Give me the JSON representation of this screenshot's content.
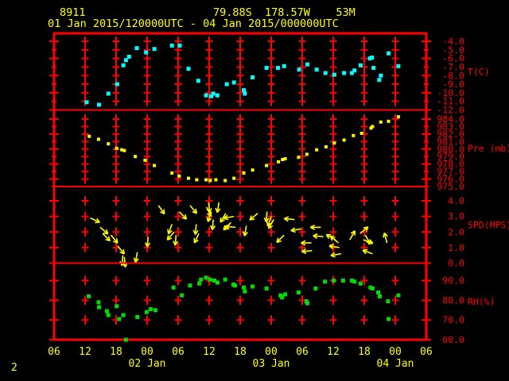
{
  "header": {
    "station_id": "8911",
    "coords": "79.88S  178.57W    53M",
    "period": "01 Jan 2015/120000UTC - 04 Jan 2015/000000UTC",
    "page_number": "2"
  },
  "colors": {
    "background": "#000000",
    "axis": "#ff0000",
    "header_text": "#ffff00",
    "time_labels": "#ffff00",
    "temperature": "#00ffff",
    "pressure": "#ffff00",
    "wind": "#ffff00",
    "humidity": "#00dd00"
  },
  "time_axis": {
    "start_hour": 6,
    "end_hour": 78,
    "tick_interval_hours": 6,
    "hour_labels": [
      "06",
      "12",
      "18",
      "00",
      "06",
      "12",
      "18",
      "00",
      "06",
      "12",
      "18",
      "00",
      "06"
    ],
    "day_labels": [
      {
        "label": "02 Jan",
        "tick_index": 3
      },
      {
        "label": "03 Jan",
        "tick_index": 7
      },
      {
        "label": "04 Jan",
        "tick_index": 11
      }
    ]
  },
  "chart_data": [
    {
      "type": "scatter",
      "panel": "temperature",
      "ylabel": "T(C)",
      "ytick_labels": [
        "-4.0",
        "-5.0",
        "-6.0",
        "-7.0",
        "-8.0",
        "-9.0",
        "-10.0",
        "-11.0",
        "-12.0"
      ],
      "ylim": [
        -12.0,
        -4.0
      ],
      "points": [
        [
          12.3,
          -11.1
        ],
        [
          14.7,
          -11.4
        ],
        [
          16.5,
          -10.1
        ],
        [
          18.2,
          -9.0
        ],
        [
          19.4,
          -6.8
        ],
        [
          19.9,
          -6.2
        ],
        [
          20.5,
          -5.8
        ],
        [
          22.0,
          -4.8
        ],
        [
          23.8,
          -5.3
        ],
        [
          25.4,
          -4.9
        ],
        [
          28.8,
          -4.5
        ],
        [
          30.3,
          -4.5
        ],
        [
          32.0,
          -7.2
        ],
        [
          33.9,
          -8.6
        ],
        [
          35.4,
          -10.3
        ],
        [
          36.4,
          -10.4
        ],
        [
          36.8,
          -10.1
        ],
        [
          37.6,
          -10.3
        ],
        [
          39.4,
          -9.0
        ],
        [
          40.8,
          -8.8
        ],
        [
          42.7,
          -9.7
        ],
        [
          42.9,
          -10.1
        ],
        [
          44.4,
          -8.2
        ],
        [
          47.1,
          -7.1
        ],
        [
          49.3,
          -7.1
        ],
        [
          50.5,
          -6.9
        ],
        [
          53.4,
          -7.3
        ],
        [
          55.0,
          -6.7
        ],
        [
          56.8,
          -7.3
        ],
        [
          58.5,
          -7.7
        ],
        [
          60.2,
          -7.9
        ],
        [
          62.1,
          -7.7
        ],
        [
          63.6,
          -7.7
        ],
        [
          64.1,
          -7.4
        ],
        [
          65.3,
          -6.8
        ],
        [
          67.1,
          -6.0
        ],
        [
          67.5,
          -5.9
        ],
        [
          67.8,
          -7.1
        ],
        [
          68.9,
          -8.5
        ],
        [
          69.2,
          -8.0
        ],
        [
          70.7,
          -5.4
        ],
        [
          72.6,
          -6.9
        ]
      ]
    },
    {
      "type": "scatter",
      "panel": "pressure",
      "ylabel": "Pre (mb)",
      "ytick_labels": [
        "984.0",
        "983.0",
        "982.0",
        "981.0",
        "980.0",
        "979.0",
        "978.0",
        "977.0",
        "976.0",
        "975.0"
      ],
      "ylim": [
        975.0,
        984.0
      ],
      "points": [
        [
          12.8,
          981.7
        ],
        [
          14.6,
          981.3
        ],
        [
          16.5,
          980.7
        ],
        [
          18.1,
          980.1
        ],
        [
          19.1,
          979.9
        ],
        [
          19.6,
          979.8
        ],
        [
          21.7,
          979.0
        ],
        [
          23.6,
          978.5
        ],
        [
          25.4,
          977.8
        ],
        [
          28.8,
          976.8
        ],
        [
          30.2,
          976.4
        ],
        [
          32.0,
          976.1
        ],
        [
          33.6,
          975.9
        ],
        [
          35.4,
          975.9
        ],
        [
          36.2,
          975.8
        ],
        [
          37.3,
          975.9
        ],
        [
          39.1,
          975.8
        ],
        [
          40.8,
          976.1
        ],
        [
          42.7,
          976.8
        ],
        [
          44.4,
          977.2
        ],
        [
          47.1,
          977.8
        ],
        [
          49.4,
          978.3
        ],
        [
          50.2,
          978.6
        ],
        [
          50.7,
          978.7
        ],
        [
          53.3,
          978.9
        ],
        [
          54.9,
          979.3
        ],
        [
          56.8,
          979.9
        ],
        [
          58.6,
          980.3
        ],
        [
          60.2,
          980.8
        ],
        [
          62.1,
          981.2
        ],
        [
          63.9,
          981.8
        ],
        [
          65.5,
          982.1
        ],
        [
          67.3,
          982.8
        ],
        [
          67.6,
          983.0
        ],
        [
          69.2,
          983.6
        ],
        [
          70.7,
          983.7
        ],
        [
          72.6,
          984.3
        ]
      ]
    },
    {
      "type": "wind_arrows",
      "panel": "wind_speed",
      "ylabel": "SPD(MPS)",
      "ytick_labels": [
        "4.0",
        "3.0",
        "2.0",
        "1.0",
        "0.0"
      ],
      "ylim": [
        0.0,
        4.0
      ],
      "arrow_note": "each arrow anchored at [hour, speed_mps], dir = screen angle arrow points (0=right,90=down)",
      "arrows": [
        [
          13.0,
          2.9,
          25
        ],
        [
          14.9,
          2.3,
          40
        ],
        [
          15.4,
          1.9,
          45
        ],
        [
          17.0,
          1.8,
          50
        ],
        [
          18.3,
          1.1,
          50
        ],
        [
          19.3,
          0.5,
          95
        ],
        [
          19.6,
          0.4,
          85
        ],
        [
          22.1,
          0.7,
          100
        ],
        [
          24.2,
          1.7,
          95
        ],
        [
          26.2,
          3.7,
          55
        ],
        [
          28.8,
          2.5,
          110
        ],
        [
          29.2,
          2.0,
          130
        ],
        [
          29.6,
          1.8,
          95
        ],
        [
          30.2,
          3.3,
          45
        ],
        [
          32.3,
          3.7,
          50
        ],
        [
          33.5,
          2.5,
          95
        ],
        [
          34.0,
          1.9,
          115
        ],
        [
          35.5,
          3.6,
          65
        ],
        [
          35.9,
          3.9,
          85
        ],
        [
          36.3,
          3.3,
          105
        ],
        [
          36.8,
          2.8,
          95
        ],
        [
          37.9,
          3.9,
          100
        ],
        [
          39.2,
          3.2,
          120
        ],
        [
          40.2,
          2.6,
          135
        ],
        [
          40.8,
          3.0,
          170
        ],
        [
          41.1,
          2.3,
          185
        ],
        [
          43.2,
          2.4,
          100
        ],
        [
          45.4,
          3.2,
          140
        ],
        [
          47.2,
          3.3,
          95
        ],
        [
          48.0,
          3.0,
          110
        ],
        [
          48.5,
          2.8,
          120
        ],
        [
          50.5,
          1.8,
          135
        ],
        [
          52.5,
          2.8,
          185
        ],
        [
          53.8,
          2.2,
          170
        ],
        [
          55.8,
          1.3,
          180
        ],
        [
          55.9,
          0.8,
          175
        ],
        [
          57.6,
          2.3,
          180
        ],
        [
          58.1,
          1.7,
          185
        ],
        [
          60.4,
          1.5,
          210
        ],
        [
          61.0,
          1.3,
          220
        ],
        [
          61.2,
          1.0,
          190
        ],
        [
          61.5,
          0.6,
          170
        ],
        [
          63.2,
          1.5,
          300
        ],
        [
          65.2,
          1.9,
          320
        ],
        [
          65.8,
          1.5,
          20
        ],
        [
          66.2,
          1.8,
          60
        ],
        [
          67.6,
          0.6,
          200
        ],
        [
          70.4,
          1.3,
          255
        ]
      ]
    },
    {
      "type": "scatter",
      "panel": "relative_humidity",
      "ylabel": "RH(%)",
      "ytick_labels": [
        "90.0",
        "80.0",
        "70.0",
        "60.0"
      ],
      "ylim": [
        60.0,
        90.0
      ],
      "points": [
        [
          12.7,
          82.0
        ],
        [
          14.6,
          79.0
        ],
        [
          14.7,
          76.5
        ],
        [
          16.2,
          74.5
        ],
        [
          16.5,
          72.5
        ],
        [
          18.1,
          77.0
        ],
        [
          18.6,
          70.5
        ],
        [
          19.4,
          72.5
        ],
        [
          19.9,
          60.0
        ],
        [
          22.1,
          71.5
        ],
        [
          23.9,
          74.0
        ],
        [
          24.7,
          75.5
        ],
        [
          25.6,
          75.0
        ],
        [
          29.1,
          86.5
        ],
        [
          30.7,
          82.5
        ],
        [
          32.3,
          87.5
        ],
        [
          34.1,
          88.5
        ],
        [
          34.4,
          90.5
        ],
        [
          35.4,
          91.5
        ],
        [
          36.2,
          90.5
        ],
        [
          37.0,
          90.0
        ],
        [
          37.6,
          89.0
        ],
        [
          39.1,
          90.5
        ],
        [
          40.7,
          88.0
        ],
        [
          41.0,
          87.5
        ],
        [
          42.7,
          86.5
        ],
        [
          42.9,
          84.5
        ],
        [
          44.4,
          87.0
        ],
        [
          47.1,
          86.0
        ],
        [
          49.8,
          82.5
        ],
        [
          50.1,
          81.5
        ],
        [
          50.7,
          83.0
        ],
        [
          53.3,
          84.0
        ],
        [
          54.8,
          79.5
        ],
        [
          55.0,
          78.5
        ],
        [
          56.6,
          86.0
        ],
        [
          58.4,
          89.5
        ],
        [
          60.1,
          90.0
        ],
        [
          61.9,
          90.0
        ],
        [
          63.6,
          90.0
        ],
        [
          64.1,
          89.5
        ],
        [
          65.3,
          88.5
        ],
        [
          67.2,
          86.5
        ],
        [
          67.6,
          86.0
        ],
        [
          68.7,
          84.0
        ],
        [
          69.0,
          82.0
        ],
        [
          70.6,
          79.5
        ],
        [
          70.7,
          70.5
        ],
        [
          72.6,
          82.5
        ]
      ]
    }
  ]
}
